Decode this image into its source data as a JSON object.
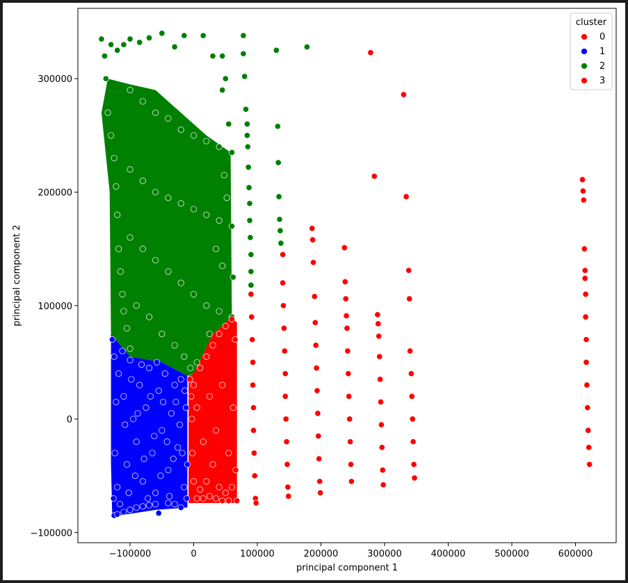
{
  "chart_data": {
    "type": "scatter",
    "xlabel": "principal component 1",
    "ylabel": "principal component 2",
    "xlim": [
      -182000,
      664000
    ],
    "ylim": [
      -109000,
      362000
    ],
    "x_ticks": [
      {
        "value": -100000,
        "label": "−100000"
      },
      {
        "value": 0,
        "label": "0"
      },
      {
        "value": 100000,
        "label": "100000"
      },
      {
        "value": 200000,
        "label": "200000"
      },
      {
        "value": 300000,
        "label": "300000"
      },
      {
        "value": 400000,
        "label": "400000"
      },
      {
        "value": 500000,
        "label": "500000"
      },
      {
        "value": 600000,
        "label": "600000"
      }
    ],
    "y_ticks": [
      {
        "value": -100000,
        "label": "−100000"
      },
      {
        "value": 0,
        "label": "0"
      },
      {
        "value": 100000,
        "label": "100000"
      },
      {
        "value": 200000,
        "label": "200000"
      },
      {
        "value": 300000,
        "label": "300000"
      }
    ],
    "grid": false,
    "legend": {
      "title": "cluster",
      "placement": "top-right",
      "entries": [
        {
          "label": "0",
          "color": "#ff0000"
        },
        {
          "label": "1",
          "color": "#0000ff"
        },
        {
          "label": "2",
          "color": "#008000"
        },
        {
          "label": "3",
          "color": "#ff0000"
        }
      ]
    },
    "series": [
      {
        "name": "1",
        "color": "#0000ff",
        "points": [
          [
            -125000,
            -85000
          ],
          [
            -120000,
            -84000
          ],
          [
            -110000,
            -82000
          ],
          [
            -100000,
            -80000
          ],
          [
            -90000,
            -78000
          ],
          [
            -80000,
            -77000
          ],
          [
            -70000,
            -76000
          ],
          [
            -60000,
            -75000
          ],
          [
            -55000,
            -83000
          ],
          [
            -40000,
            -74000
          ],
          [
            -30000,
            -75000
          ],
          [
            -20000,
            -78000
          ],
          [
            -128000,
            70000
          ],
          [
            -125000,
            55000
          ],
          [
            -120000,
            -60000
          ],
          [
            -118000,
            40000
          ],
          [
            -110000,
            20000
          ],
          [
            -105000,
            -40000
          ],
          [
            -100000,
            52000
          ],
          [
            -95000,
            0
          ],
          [
            -90000,
            -20000
          ],
          [
            -85000,
            30000
          ],
          [
            -80000,
            -55000
          ],
          [
            -75000,
            10000
          ],
          [
            -70000,
            45000
          ],
          [
            -65000,
            -30000
          ],
          [
            -60000,
            -65000
          ],
          [
            -55000,
            25000
          ],
          [
            -50000,
            -10000
          ],
          [
            -45000,
            40000
          ],
          [
            -40000,
            -45000
          ],
          [
            -35000,
            5000
          ],
          [
            -30000,
            30000
          ],
          [
            -25000,
            -25000
          ],
          [
            -20000,
            35000
          ],
          [
            -15000,
            -60000
          ],
          [
            -12000,
            10000
          ],
          [
            -10000,
            -40000
          ],
          [
            -126000,
            -70000
          ],
          [
            -124000,
            -30000
          ],
          [
            -122000,
            15000
          ],
          [
            -116000,
            -75000
          ],
          [
            -112000,
            60000
          ],
          [
            -108000,
            -5000
          ],
          [
            -102000,
            -65000
          ],
          [
            -98000,
            35000
          ],
          [
            -92000,
            -50000
          ],
          [
            -88000,
            5000
          ],
          [
            -82000,
            48000
          ],
          [
            -78000,
            -35000
          ],
          [
            -72000,
            -70000
          ],
          [
            -68000,
            20000
          ],
          [
            -62000,
            -15000
          ],
          [
            -58000,
            50000
          ],
          [
            -52000,
            -50000
          ],
          [
            -48000,
            15000
          ],
          [
            -42000,
            -20000
          ],
          [
            -38000,
            -68000
          ],
          [
            -32000,
            -35000
          ],
          [
            -28000,
            15000
          ],
          [
            -22000,
            -5000
          ],
          [
            -18000,
            -30000
          ],
          [
            -14000,
            25000
          ],
          [
            -11000,
            -70000
          ]
        ]
      },
      {
        "name": "2",
        "color": "#008000",
        "points": [
          [
            -145000,
            335000
          ],
          [
            -140000,
            320000
          ],
          [
            -138000,
            300000
          ],
          [
            -135000,
            270000
          ],
          [
            -130000,
            250000
          ],
          [
            -125000,
            230000
          ],
          [
            -122000,
            205000
          ],
          [
            -120000,
            180000
          ],
          [
            -118000,
            150000
          ],
          [
            -115000,
            130000
          ],
          [
            -112000,
            110000
          ],
          [
            -110000,
            95000
          ],
          [
            -105000,
            80000
          ],
          [
            -100000,
            62000
          ],
          [
            -130000,
            330000
          ],
          [
            -120000,
            325000
          ],
          [
            -110000,
            330000
          ],
          [
            -100000,
            335000
          ],
          [
            -85000,
            332000
          ],
          [
            -70000,
            336000
          ],
          [
            -50000,
            340000
          ],
          [
            -30000,
            328000
          ],
          [
            -15000,
            338000
          ],
          [
            15000,
            338000
          ],
          [
            30000,
            320000
          ],
          [
            45000,
            320000
          ],
          [
            78000,
            338000
          ],
          [
            78000,
            322000
          ],
          [
            130000,
            325000
          ],
          [
            178000,
            328000
          ],
          [
            -100000,
            290000
          ],
          [
            -80000,
            280000
          ],
          [
            -60000,
            270000
          ],
          [
            -40000,
            265000
          ],
          [
            -20000,
            255000
          ],
          [
            0,
            250000
          ],
          [
            20000,
            245000
          ],
          [
            40000,
            240000
          ],
          [
            60000,
            235000
          ],
          [
            -100000,
            220000
          ],
          [
            -80000,
            210000
          ],
          [
            -60000,
            200000
          ],
          [
            -40000,
            195000
          ],
          [
            -20000,
            190000
          ],
          [
            0,
            185000
          ],
          [
            20000,
            180000
          ],
          [
            40000,
            175000
          ],
          [
            60000,
            170000
          ],
          [
            -100000,
            160000
          ],
          [
            -80000,
            150000
          ],
          [
            -60000,
            140000
          ],
          [
            -40000,
            130000
          ],
          [
            -20000,
            120000
          ],
          [
            0,
            110000
          ],
          [
            20000,
            100000
          ],
          [
            40000,
            95000
          ],
          [
            60000,
            90000
          ],
          [
            -90000,
            100000
          ],
          [
            -70000,
            90000
          ],
          [
            -50000,
            75000
          ],
          [
            -30000,
            65000
          ],
          [
            -15000,
            55000
          ],
          [
            -5000,
            45000
          ],
          [
            5000,
            50000
          ],
          [
            25000,
            75000
          ],
          [
            80000,
            302000
          ],
          [
            82000,
            273000
          ],
          [
            84000,
            260000
          ],
          [
            84000,
            250000
          ],
          [
            85000,
            240000
          ],
          [
            86000,
            222000
          ],
          [
            87000,
            204000
          ],
          [
            88000,
            190000
          ],
          [
            88000,
            175000
          ],
          [
            89000,
            160000
          ],
          [
            90000,
            145000
          ],
          [
            90000,
            130000
          ],
          [
            90000,
            118000
          ],
          [
            132000,
            258000
          ],
          [
            133000,
            226000
          ],
          [
            134000,
            196000
          ],
          [
            135000,
            176000
          ],
          [
            136000,
            166000
          ],
          [
            137000,
            155000
          ],
          [
            50000,
            300000
          ],
          [
            45000,
            290000
          ],
          [
            55000,
            260000
          ],
          [
            48000,
            215000
          ],
          [
            52000,
            195000
          ],
          [
            35000,
            150000
          ],
          [
            45000,
            135000
          ],
          [
            62000,
            125000
          ]
        ]
      },
      {
        "name": "3",
        "color": "#ff0000",
        "points": [
          [
            -6000,
            35000
          ],
          [
            -4000,
            20000
          ],
          [
            -3000,
            0
          ],
          [
            -2000,
            -30000
          ],
          [
            0,
            -55000
          ],
          [
            5000,
            -70000
          ],
          [
            10000,
            -62000
          ],
          [
            15000,
            -70000
          ],
          [
            20000,
            -55000
          ],
          [
            25000,
            -68000
          ],
          [
            30000,
            -40000
          ],
          [
            35000,
            -70000
          ],
          [
            40000,
            -60000
          ],
          [
            45000,
            -72000
          ],
          [
            50000,
            -65000
          ],
          [
            55000,
            -72000
          ],
          [
            60000,
            -60000
          ],
          [
            68000,
            -72000
          ],
          [
            0,
            30000
          ],
          [
            10000,
            45000
          ],
          [
            20000,
            55000
          ],
          [
            30000,
            65000
          ],
          [
            40000,
            75000
          ],
          [
            50000,
            82000
          ],
          [
            60000,
            88000
          ],
          [
            65000,
            70000
          ],
          [
            5000,
            10000
          ],
          [
            15000,
            -20000
          ],
          [
            25000,
            20000
          ],
          [
            35000,
            -10000
          ],
          [
            45000,
            30000
          ],
          [
            55000,
            -30000
          ],
          [
            62000,
            10000
          ],
          [
            66000,
            -45000
          ],
          [
            90000,
            110000
          ],
          [
            91000,
            90000
          ],
          [
            92000,
            70000
          ],
          [
            93000,
            50000
          ],
          [
            93000,
            30000
          ],
          [
            94000,
            10000
          ],
          [
            94000,
            -10000
          ],
          [
            95000,
            -30000
          ],
          [
            96000,
            -50000
          ],
          [
            97000,
            -70000
          ],
          [
            98000,
            -74000
          ],
          [
            140000,
            145000
          ],
          [
            140000,
            120000
          ],
          [
            141000,
            100000
          ],
          [
            142000,
            80000
          ],
          [
            143000,
            60000
          ],
          [
            144000,
            40000
          ],
          [
            144000,
            20000
          ],
          [
            145000,
            0
          ],
          [
            146000,
            -20000
          ],
          [
            147000,
            -40000
          ],
          [
            148000,
            -60000
          ],
          [
            149000,
            -68000
          ],
          [
            186000,
            168000
          ],
          [
            187000,
            158000
          ],
          [
            188000,
            138000
          ],
          [
            190000,
            108000
          ],
          [
            191000,
            85000
          ],
          [
            192000,
            65000
          ],
          [
            193000,
            45000
          ],
          [
            194000,
            25000
          ],
          [
            195000,
            5000
          ],
          [
            196000,
            -15000
          ],
          [
            197000,
            -35000
          ],
          [
            198000,
            -55000
          ],
          [
            199000,
            -65000
          ],
          [
            237000,
            151000
          ],
          [
            238000,
            121000
          ],
          [
            239000,
            106000
          ],
          [
            240000,
            91000
          ],
          [
            241000,
            80000
          ],
          [
            242000,
            60000
          ],
          [
            243000,
            40000
          ],
          [
            244000,
            20000
          ],
          [
            245000,
            0
          ],
          [
            246000,
            -20000
          ],
          [
            247000,
            -40000
          ],
          [
            248000,
            -55000
          ],
          [
            289000,
            92000
          ],
          [
            290000,
            84000
          ],
          [
            291000,
            73000
          ],
          [
            292000,
            55000
          ],
          [
            293000,
            35000
          ],
          [
            294000,
            15000
          ],
          [
            295000,
            -5000
          ],
          [
            296000,
            -25000
          ],
          [
            297000,
            -45000
          ],
          [
            298000,
            -58000
          ],
          [
            338000,
            131000
          ],
          [
            339000,
            106000
          ],
          [
            340000,
            60000
          ],
          [
            342000,
            40000
          ],
          [
            343000,
            20000
          ],
          [
            344000,
            0
          ],
          [
            345000,
            -20000
          ],
          [
            346000,
            -40000
          ],
          [
            347000,
            -52000
          ],
          [
            278000,
            323000
          ],
          [
            330000,
            286000
          ],
          [
            284000,
            214000
          ],
          [
            334000,
            196000
          ],
          [
            611000,
            211000
          ],
          [
            612000,
            201000
          ],
          [
            613000,
            193000
          ],
          [
            614000,
            150000
          ],
          [
            615000,
            131000
          ],
          [
            615000,
            124000
          ],
          [
            616000,
            110000
          ],
          [
            616000,
            90000
          ],
          [
            617000,
            70000
          ],
          [
            617000,
            50000
          ],
          [
            618000,
            30000
          ],
          [
            619000,
            10000
          ],
          [
            620000,
            -10000
          ],
          [
            621000,
            -25000
          ],
          [
            622000,
            -40000
          ]
        ]
      }
    ]
  }
}
